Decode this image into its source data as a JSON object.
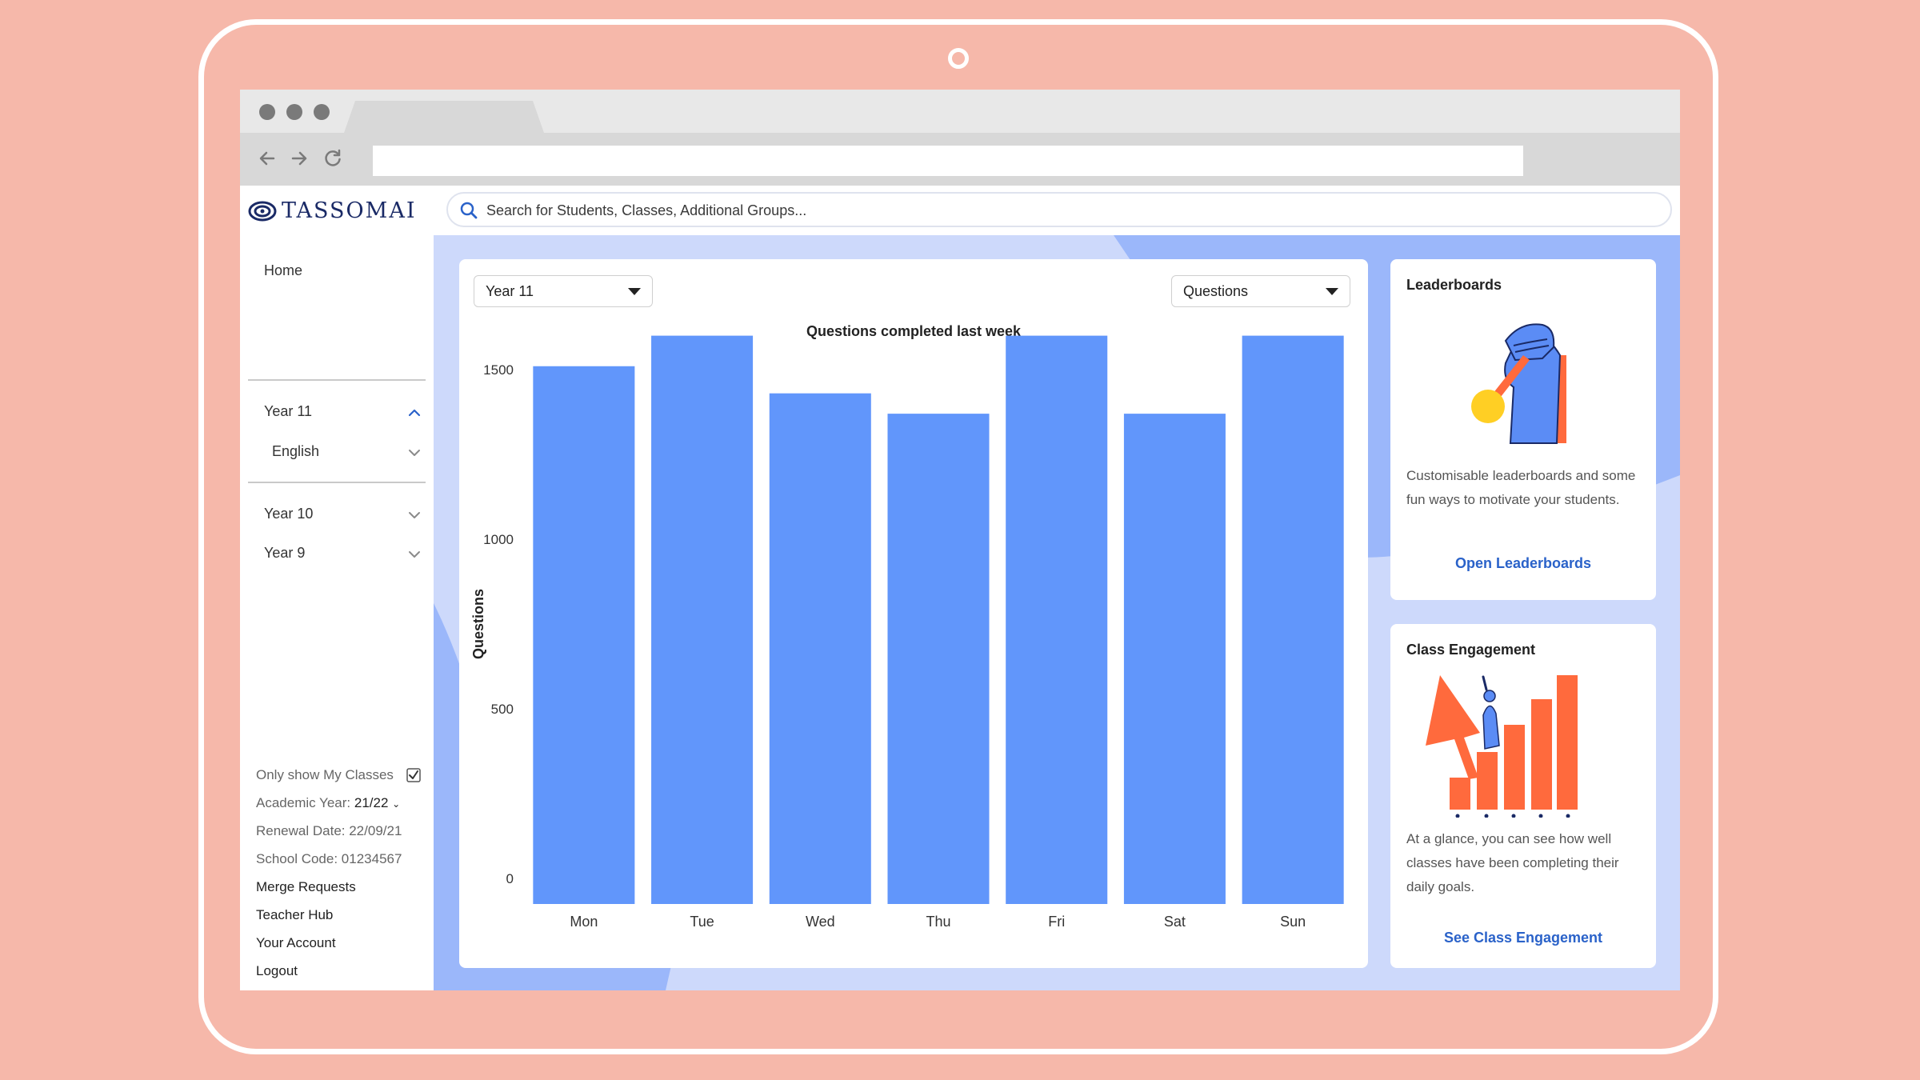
{
  "colors": {
    "background": "#f6b8aa",
    "bar": "#6196fb",
    "accent_blue": "#2a62c9",
    "illustration_orange": "#ff6a3d",
    "illustration_blue": "#5b8cf5",
    "medal_yellow": "#ffcf24"
  },
  "app": {
    "logo_text": "TASSOMAI",
    "search_placeholder": "Search for Students, Classes, Additional Groups..."
  },
  "sidebar": {
    "home": "Home",
    "year11": "Year 11",
    "english": "English",
    "year10": "Year 10",
    "year9": "Year 9",
    "only_my_classes": "Only show My Classes",
    "only_my_classes_checked": true,
    "academic_year_label": "Academic Year:",
    "academic_year_value": "21/22",
    "renewal_date": "Renewal Date: 22/09/21",
    "school_code": "School Code: 01234567",
    "merge_requests": "Merge Requests",
    "teacher_hub": "Teacher Hub",
    "your_account": "Your Account",
    "logout": "Logout"
  },
  "filters": {
    "year": "Year 11",
    "metric": "Questions"
  },
  "chart_data": {
    "type": "bar",
    "title": "Questions completed last week",
    "xlabel": "",
    "ylabel": "Questions",
    "categories": [
      "Mon",
      "Tue",
      "Wed",
      "Thu",
      "Fri",
      "Sat",
      "Sun"
    ],
    "values": [
      1510,
      1600,
      1430,
      1370,
      1600,
      1370,
      1600
    ],
    "ylim": [
      0,
      1600
    ],
    "yticks": [
      0,
      500,
      1000,
      1500
    ],
    "grid": false,
    "legend": "none"
  },
  "leaderboards": {
    "title": "Leaderboards",
    "body": "Customisable leaderboards and some fun ways to motivate your students.",
    "link": "Open Leaderboards"
  },
  "engagement": {
    "title": "Class Engagement",
    "body": "At a glance, you can see how well classes have been completing their daily goals.",
    "link": "See Class Engagement"
  }
}
